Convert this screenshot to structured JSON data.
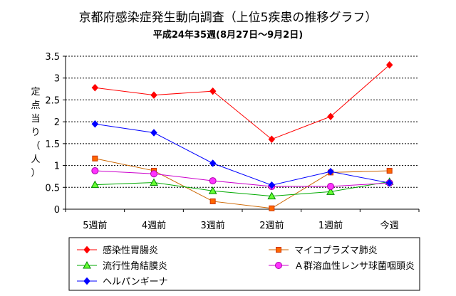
{
  "chart_data": {
    "type": "line",
    "title": "京都府感染症発生動向調査（上位5疾患の推移グラフ）",
    "subtitle": "平成24年35週(8月27日～9月2日)",
    "ylabel_chars": [
      "定",
      "点",
      "当",
      "り",
      "（",
      "人",
      "）"
    ],
    "xlabel": "",
    "categories": [
      "5週前",
      "4週前",
      "3週前",
      "2週前",
      "1週前",
      "今週"
    ],
    "ylim": [
      0,
      3.5
    ],
    "yticks": [
      0,
      0.5,
      1,
      1.5,
      2,
      2.5,
      3,
      3.5
    ],
    "ytick_labels": [
      "0",
      "0.5",
      "1",
      "1.5",
      "2",
      "2.5",
      "3",
      "3.5"
    ],
    "grid": "horizontal-dashed",
    "legend_position": "bottom",
    "series": [
      {
        "name": "感染性胃腸炎",
        "color": "#ff0000",
        "marker": "diamond",
        "values": [
          2.78,
          2.61,
          2.7,
          1.6,
          2.12,
          3.3
        ]
      },
      {
        "name": "マイコプラズマ肺炎",
        "color": "#cc6600",
        "marker": "square",
        "values": [
          1.16,
          0.88,
          0.18,
          0.02,
          0.84,
          0.88
        ]
      },
      {
        "name": "流行性角結膜炎",
        "color": "#00aa00",
        "marker": "triangle",
        "values": [
          0.56,
          0.61,
          0.42,
          0.3,
          0.4,
          0.63
        ]
      },
      {
        "name": "Ａ群溶血性レンサ球菌咽頭炎",
        "color": "#cc00cc",
        "marker": "circle",
        "values": [
          0.88,
          0.81,
          0.65,
          0.52,
          0.52,
          0.6
        ]
      },
      {
        "name": "ヘルパンギーナ",
        "color": "#0000ff",
        "marker": "diamond",
        "values": [
          1.95,
          1.75,
          1.05,
          0.55,
          0.86,
          0.6
        ]
      }
    ]
  }
}
